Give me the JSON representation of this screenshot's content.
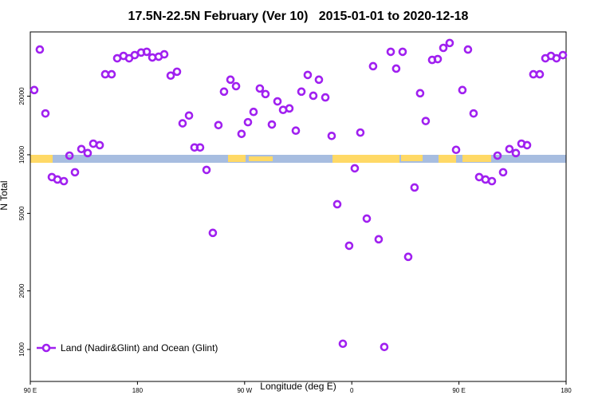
{
  "chart_data": {
    "type": "scatter",
    "title": "17.5N-22.5N February (Ver 10)   2015-01-01 to 2020-12-18",
    "x_label": "Longitude (deg E)",
    "y_label": "N Total",
    "xlim": [
      90,
      540
    ],
    "xticks": [
      {
        "value": 90,
        "label": "90 E"
      },
      {
        "value": 180,
        "label": "180"
      },
      {
        "value": 270,
        "label": "90 W"
      },
      {
        "value": 360,
        "label": "0"
      },
      {
        "value": 450,
        "label": "90 E"
      },
      {
        "value": 540,
        "label": "180"
      }
    ],
    "ylim": [
      685,
      42750
    ],
    "yticks": [
      1000,
      2000,
      5000,
      10000,
      20000
    ],
    "log_y": true,
    "legend": "lower left",
    "series": [
      {
        "name": "Land (Nadir&Glint) and Ocean (Glint)",
        "color": "#a020f0",
        "x": [
          93.3,
          98.0,
          102.7,
          108.1,
          112.8,
          118.2,
          122.9,
          127.5,
          132.9,
          138.2,
          142.9,
          148.3,
          152.9,
          158.3,
          163.0,
          168.3,
          173.0,
          177.7,
          183.1,
          187.8,
          192.5,
          197.8,
          202.5,
          207.9,
          213.2,
          217.9,
          223.3,
          227.9,
          232.6,
          238.0,
          243.3,
          248.0,
          252.7,
          258.1,
          262.8,
          267.4,
          272.8,
          277.5,
          282.8,
          287.5,
          292.9,
          297.6,
          302.3,
          307.6,
          313.0,
          317.7,
          323.0,
          327.7,
          332.4,
          337.8,
          343.1,
          347.8,
          352.5,
          357.8,
          362.5,
          367.2,
          372.6,
          377.9,
          382.6,
          387.3,
          392.7,
          397.3,
          402.7,
          407.4,
          412.7,
          417.4,
          422.1,
          427.5,
          432.2,
          436.9,
          442.2,
          447.6,
          452.9,
          457.6,
          462.3,
          467.0,
          472.3,
          477.7,
          482.4,
          487.1,
          492.4,
          497.8,
          502.5,
          507.2,
          512.5,
          517.9,
          522.6,
          527.3,
          531.9,
          537.3
        ],
        "values": [
          21500,
          34700,
          16300,
          7680,
          7460,
          7320,
          9900,
          8130,
          10700,
          10200,
          11400,
          11200,
          25900,
          25900,
          31300,
          32200,
          31300,
          32500,
          33500,
          33800,
          31600,
          31900,
          32800,
          25500,
          26700,
          14500,
          15900,
          10900,
          10900,
          8360,
          3970,
          14200,
          21100,
          24300,
          22500,
          12800,
          14700,
          16600,
          21900,
          20500,
          14300,
          18800,
          17000,
          17300,
          13300,
          21100,
          25700,
          20100,
          24300,
          19700,
          12500,
          5570,
          1070,
          3410,
          8520,
          13000,
          4700,
          28500,
          3680,
          1030,
          33800,
          27700,
          33800,
          2990,
          6790,
          20700,
          14900,
          30700,
          31000,
          35400,
          37500,
          10600,
          21500,
          34700,
          16300,
          7680,
          7460,
          7320,
          9900,
          8130,
          10700,
          10200,
          11400,
          11200,
          25900,
          25900,
          31300,
          32200,
          31300,
          32500
        ]
      }
    ]
  }
}
